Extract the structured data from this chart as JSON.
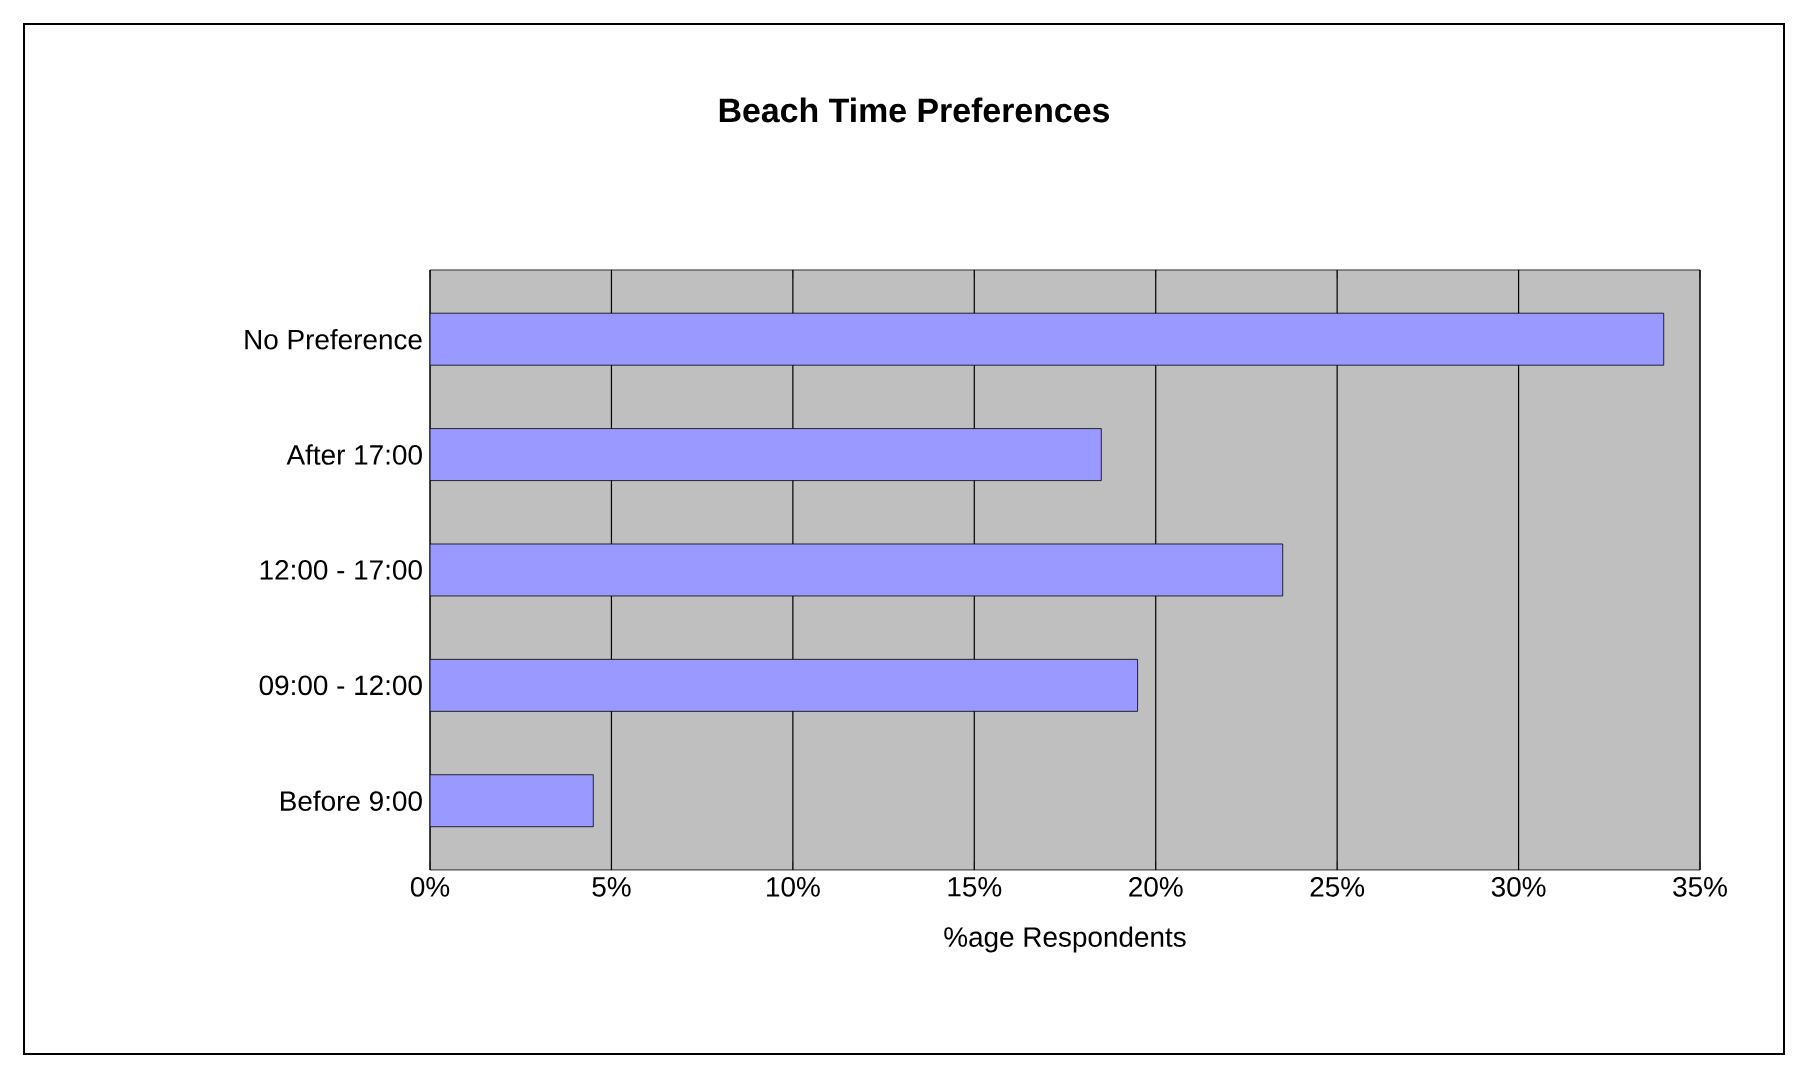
{
  "chart_data": {
    "type": "bar",
    "orientation": "horizontal",
    "title": "Beach Time Preferences",
    "xlabel": "%age Respondents",
    "categories": [
      "No Preference",
      "After 17:00",
      "12:00 - 17:00",
      "09:00 - 12:00",
      "Before 9:00"
    ],
    "values": [
      34,
      18.5,
      23.5,
      19.5,
      4.5
    ],
    "color": "#9999ff",
    "xlim": [
      0,
      35
    ],
    "xticks": [
      {
        "value": 0,
        "label": "0%"
      },
      {
        "value": 5,
        "label": "5%"
      },
      {
        "value": 10,
        "label": "10%"
      },
      {
        "value": 15,
        "label": "15%"
      },
      {
        "value": 20,
        "label": "20%"
      },
      {
        "value": 25,
        "label": "25%"
      },
      {
        "value": 30,
        "label": "30%"
      },
      {
        "value": 35,
        "label": "35%"
      }
    ],
    "grid": "x"
  }
}
